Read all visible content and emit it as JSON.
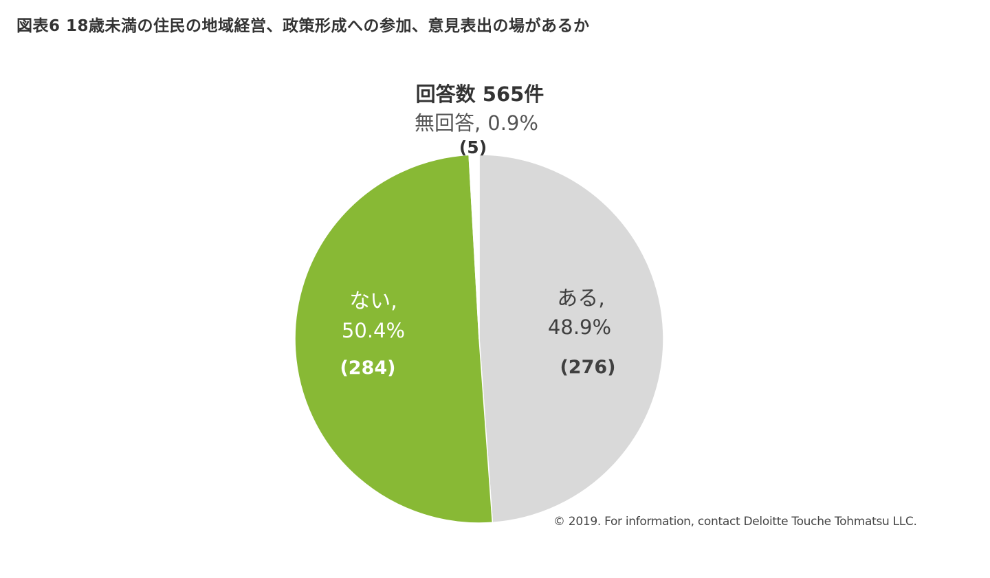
{
  "figure_title": "図表6 18歳未満の住民の地域経営、政策形成への参加、意見表出の場があるか",
  "copyright": "© 2019. For information, contact Deloitte Touche Tohmatsu LLC.",
  "chart_data": {
    "type": "pie",
    "title": "回答数 565件",
    "total": 565,
    "start": "12-o'clock",
    "direction": "clockwise",
    "slices": [
      {
        "label": "ある,",
        "percent_label": "48.9%",
        "count_label": "(276)",
        "value": 276,
        "color": "#d9d9d9",
        "text_color": "#404040"
      },
      {
        "label": "ない,",
        "percent_label": "50.4%",
        "count_label": "(284)",
        "value": 284,
        "color": "#88b935",
        "text_color": "#ffffff"
      },
      {
        "label": "無回答,",
        "percent_label": "0.9%",
        "count_label": "(5)",
        "value": 5,
        "color": "#ffffff",
        "text_color": "#555555"
      }
    ]
  }
}
